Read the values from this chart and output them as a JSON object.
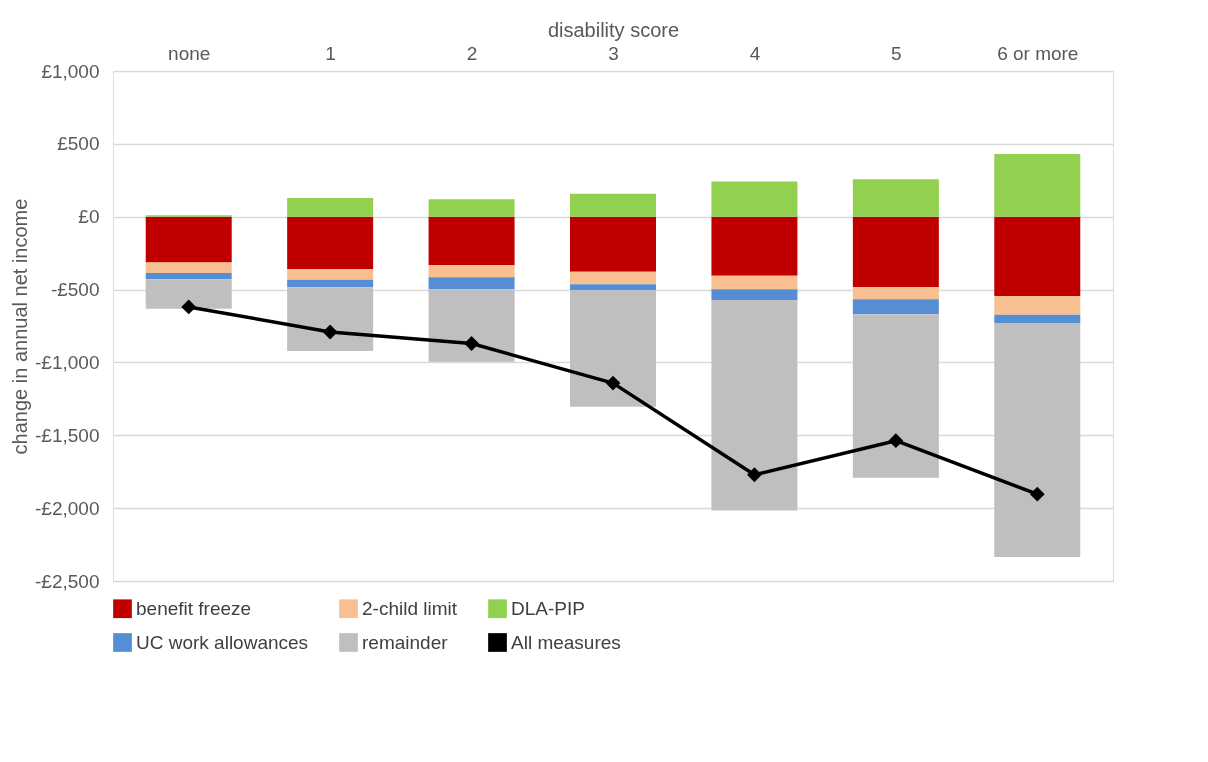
{
  "chart_data": {
    "type": "bar",
    "stacked": true,
    "xlabel": "disability score",
    "ylabel": "change in annual net income",
    "categories": [
      "none",
      "1",
      "2",
      "3",
      "4",
      "5",
      "6 or more"
    ],
    "series": [
      {
        "name": "benefit freeze",
        "color": "#c00000",
        "values": [
          -314,
          -360,
          -333,
          -378,
          -406,
          -482,
          -546
        ]
      },
      {
        "name": "2-child limit",
        "color": "#f8bf90",
        "values": [
          -73,
          -73,
          -82,
          -85,
          -92,
          -85,
          -126
        ]
      },
      {
        "name": "DLA-PIP",
        "color": "#92d050",
        "values": [
          10,
          128,
          119,
          158,
          241,
          257,
          431
        ]
      },
      {
        "name": "UC work allowances",
        "color": "#558ed5",
        "values": [
          -42,
          -51,
          -83,
          -42,
          -73,
          -103,
          -57
        ]
      },
      {
        "name": "remainder",
        "color": "#bfbfbf",
        "values": [
          -202,
          -438,
          -497,
          -800,
          -1445,
          -1121,
          -1606
        ]
      },
      {
        "name": "All measures",
        "type": "line",
        "color": "#000000",
        "marker": "diamond",
        "values": [
          -619,
          -791,
          -870,
          -1142,
          -1771,
          -1537,
          -1904
        ]
      }
    ],
    "ylim": [
      -2500,
      1000
    ],
    "yticks": [
      {
        "value": -2500,
        "label": "-£2,500"
      },
      {
        "value": -2000,
        "label": "-£2,000"
      },
      {
        "value": -1500,
        "label": "-£1,500"
      },
      {
        "value": -1000,
        "label": "-£1,000"
      },
      {
        "value": -500,
        "label": "-£500"
      },
      {
        "value": 0,
        "label": "£0"
      },
      {
        "value": 500,
        "label": "£500"
      },
      {
        "value": 1000,
        "label": "£1,000"
      }
    ],
    "grid": "y",
    "legend": "bottom"
  }
}
